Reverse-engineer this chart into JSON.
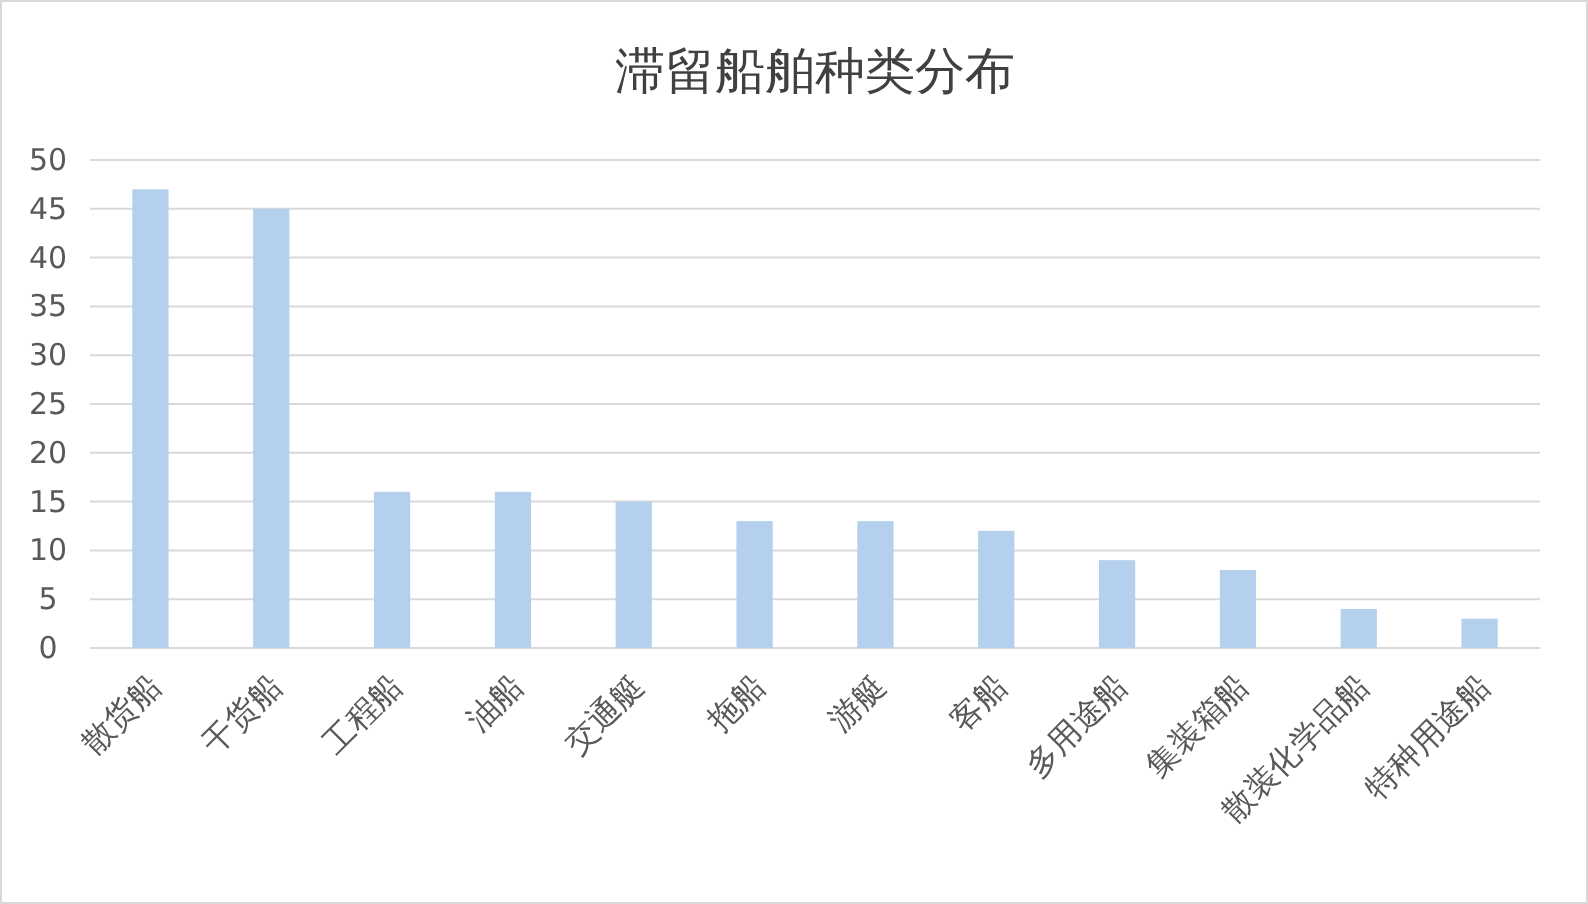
{
  "chart_data": {
    "type": "bar",
    "title": "滞留船舶种类分布",
    "categories": [
      "散货船",
      "干货船",
      "工程船",
      "油船",
      "交通艇",
      "拖船",
      "游艇",
      "客船",
      "多用途船",
      "集装箱船",
      "散装化学品船",
      "特种用途船"
    ],
    "values": [
      47,
      45,
      16,
      16,
      15,
      13,
      13,
      12,
      9,
      8,
      4,
      3
    ],
    "color": "#b4d0ec",
    "ylim": [
      0,
      50
    ],
    "yticks": [
      0,
      5,
      10,
      15,
      20,
      25,
      30,
      35,
      40,
      45,
      50
    ],
    "grid": "y"
  }
}
